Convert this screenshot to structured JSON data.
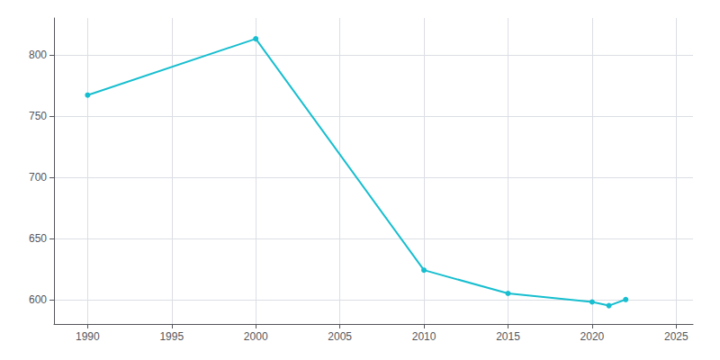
{
  "chart_data": {
    "type": "line",
    "x": [
      1990,
      2000,
      2010,
      2015,
      2020,
      2021,
      2022
    ],
    "values": [
      767,
      813,
      624,
      605,
      598,
      595,
      600
    ],
    "color": "#17becf",
    "marker": "circle",
    "xlim": [
      1988,
      2026
    ],
    "ylim": [
      580,
      830
    ],
    "xticks": [
      1990,
      1995,
      2000,
      2005,
      2010,
      2015,
      2020,
      2025
    ],
    "yticks": [
      600,
      650,
      700,
      750,
      800
    ],
    "grid": true
  }
}
